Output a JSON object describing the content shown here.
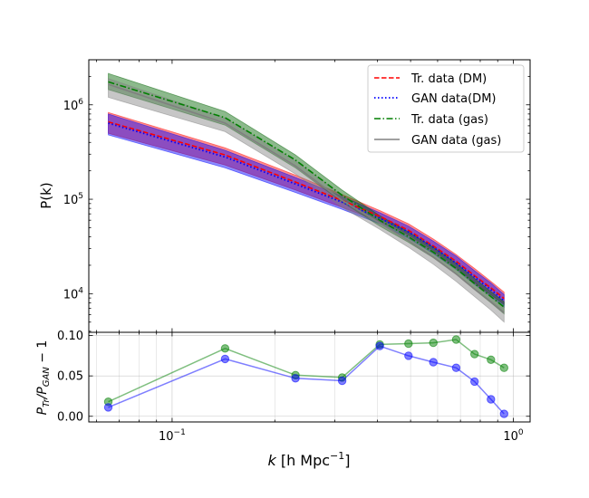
{
  "chart_data": [
    {
      "type": "line",
      "panel": "top",
      "xscale": "log",
      "yscale": "log",
      "xlim": [
        0.057,
        1.12
      ],
      "ylim": [
        3900,
        3000000
      ],
      "ylabel": "P(k)",
      "y_ticks": [
        {
          "value": 10000,
          "base": "10",
          "exp": "4"
        },
        {
          "value": 100000,
          "base": "10",
          "exp": "5"
        },
        {
          "value": 1000000,
          "base": "10",
          "exp": "6"
        }
      ],
      "legend_position": "top-right",
      "k": [
        0.065,
        0.143,
        0.23,
        0.315,
        0.406,
        0.493,
        0.583,
        0.68,
        0.77,
        0.86,
        0.94
      ],
      "series": [
        {
          "name": "Tr. data (DM)",
          "style": "dashed",
          "color": "#ff0000",
          "band_color": "#ff0000",
          "values": [
            660000,
            295000,
            152000,
            97000,
            66000,
            47000,
            32000,
            22000,
            15500,
            11500,
            8900
          ],
          "band_low": [
            500000,
            230000,
            125000,
            82000,
            58000,
            41000,
            27500,
            18500,
            13000,
            9700,
            7700
          ],
          "band_high": [
            830000,
            350000,
            180000,
            112000,
            76000,
            55000,
            38000,
            26000,
            18500,
            13500,
            10400
          ]
        },
        {
          "name": "GAN data(DM)",
          "style": "dotted",
          "color": "#0000ff",
          "band_color": "#0000ff",
          "values": [
            640000,
            280000,
            145000,
            93000,
            63000,
            45000,
            31000,
            21000,
            15000,
            11000,
            8400
          ],
          "band_low": [
            480000,
            215000,
            118000,
            78000,
            55000,
            38500,
            26500,
            18000,
            12500,
            9300,
            7200
          ],
          "band_high": [
            800000,
            330000,
            170000,
            107000,
            72000,
            52000,
            36000,
            25000,
            17500,
            13000,
            9800
          ]
        },
        {
          "name": "Tr. data (gas)",
          "style": "dashdot",
          "color": "#007f00",
          "band_color": "#006400",
          "values": [
            1750000,
            730000,
            260000,
            110000,
            60000,
            40000,
            27500,
            18500,
            12800,
            9300,
            7200
          ],
          "band_low": [
            1450000,
            610000,
            215000,
            93000,
            52000,
            35000,
            24000,
            16000,
            11000,
            8000,
            6100
          ],
          "band_high": [
            2150000,
            850000,
            295000,
            125000,
            67000,
            45000,
            31000,
            21000,
            14500,
            10500,
            8200
          ]
        },
        {
          "name": "GAN data (gas)",
          "style": "solid",
          "color": "#808080",
          "band_color": "#808080",
          "values": [
            1650000,
            640000,
            225000,
            97000,
            56000,
            36500,
            24500,
            16200,
            11200,
            8200,
            6300
          ],
          "band_low": [
            1200000,
            520000,
            185000,
            82000,
            48000,
            31000,
            20500,
            13500,
            9300,
            6700,
            5000
          ],
          "band_high": [
            1900000,
            720000,
            255000,
            110000,
            62000,
            41000,
            28000,
            18500,
            12800,
            9500,
            7300
          ]
        }
      ]
    },
    {
      "type": "line",
      "panel": "bottom",
      "xscale": "log",
      "xlim": [
        0.057,
        1.12
      ],
      "ylim": [
        -0.007,
        0.104
      ],
      "xlabel_k": "k",
      "xlabel_unit": " [h Mpc",
      "xlabel_exp": "−1",
      "xlabel_close": "]",
      "ylabel_main": "P",
      "ylabel_sub1": "Tr",
      "ylabel_slash": "/P",
      "ylabel_sub2": "GAN",
      "ylabel_tail": " − 1",
      "y_ticks": [
        {
          "value": 0.0,
          "label": "0.00"
        },
        {
          "value": 0.05,
          "label": "0.05"
        },
        {
          "value": 0.1,
          "label": "0.10"
        }
      ],
      "x_ticks": [
        {
          "value": 0.1,
          "base": "10",
          "exp": "−1"
        },
        {
          "value": 1.0,
          "base": "10",
          "exp": "0"
        }
      ],
      "grid": true,
      "k": [
        0.065,
        0.143,
        0.23,
        0.315,
        0.406,
        0.493,
        0.583,
        0.68,
        0.77,
        0.86,
        0.94
      ],
      "series": [
        {
          "name": "gas",
          "color": "#008000",
          "values": [
            0.018,
            0.084,
            0.051,
            0.048,
            0.089,
            0.09,
            0.091,
            0.095,
            0.077,
            0.07,
            0.06
          ]
        },
        {
          "name": "DM",
          "color": "#0000ff",
          "values": [
            0.011,
            0.071,
            0.047,
            0.044,
            0.087,
            0.075,
            0.067,
            0.06,
            0.043,
            0.021,
            0.003
          ]
        }
      ]
    }
  ]
}
